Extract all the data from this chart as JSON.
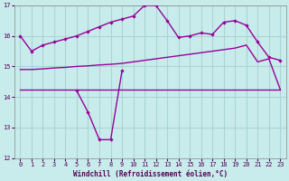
{
  "xlabel": "Windchill (Refroidissement éolien,°C)",
  "background_color": "#c8ecec",
  "grid_color": "#aad4d4",
  "line_color": "#990099",
  "upper_curve_x": [
    0,
    1,
    2,
    3,
    4,
    5,
    6,
    7,
    8,
    9,
    10,
    11,
    12,
    13,
    14,
    15,
    16,
    17,
    18,
    19,
    20,
    21,
    22,
    23
  ],
  "upper_curve_y": [
    16.0,
    15.5,
    15.7,
    15.8,
    15.9,
    16.0,
    16.15,
    16.3,
    16.45,
    16.55,
    16.65,
    17.0,
    17.0,
    16.5,
    15.95,
    16.0,
    16.1,
    16.05,
    16.45,
    16.5,
    16.35,
    15.8,
    15.3,
    15.2
  ],
  "lower_zigzag_x": [
    5,
    6,
    7,
    8,
    9
  ],
  "lower_zigzag_y": [
    14.2,
    13.5,
    12.6,
    12.6,
    14.85
  ],
  "flat_line_x": [
    0,
    23
  ],
  "flat_line_y": [
    14.25,
    14.25
  ],
  "rising_line_x": [
    0,
    1,
    2,
    3,
    4,
    5,
    6,
    7,
    8,
    9,
    10,
    11,
    12,
    13,
    14,
    15,
    16,
    17,
    18,
    19,
    20,
    21,
    22,
    23
  ],
  "rising_line_y": [
    14.9,
    14.9,
    14.92,
    14.95,
    14.97,
    15.0,
    15.02,
    15.05,
    15.07,
    15.1,
    15.15,
    15.2,
    15.25,
    15.3,
    15.35,
    15.4,
    15.45,
    15.5,
    15.55,
    15.6,
    15.7,
    15.15,
    15.25,
    14.25
  ],
  "ylim": [
    12,
    17
  ],
  "yticks": [
    12,
    13,
    14,
    15,
    16,
    17
  ],
  "xticks": [
    0,
    1,
    2,
    3,
    4,
    5,
    6,
    7,
    8,
    9,
    10,
    11,
    12,
    13,
    14,
    15,
    16,
    17,
    18,
    19,
    20,
    21,
    22,
    23
  ]
}
